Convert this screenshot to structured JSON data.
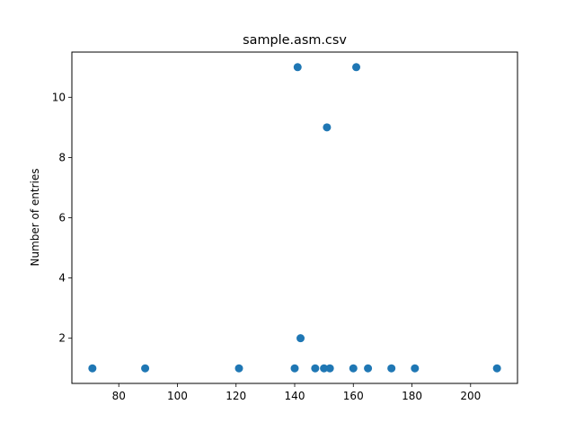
{
  "chart_data": {
    "type": "scatter",
    "title": "sample.asm.csv",
    "xlabel": "",
    "ylabel": "Number of entries",
    "xlim": [
      64,
      216
    ],
    "ylim": [
      0.5,
      11.5
    ],
    "x_ticks": [
      80,
      100,
      120,
      140,
      160,
      180,
      200
    ],
    "y_ticks": [
      2,
      4,
      6,
      8,
      10
    ],
    "grid": false,
    "legend": "none",
    "marker_color": "#1f77b4",
    "points": [
      {
        "x": 71,
        "y": 1
      },
      {
        "x": 89,
        "y": 1
      },
      {
        "x": 121,
        "y": 1
      },
      {
        "x": 140,
        "y": 1
      },
      {
        "x": 141,
        "y": 11
      },
      {
        "x": 142,
        "y": 2
      },
      {
        "x": 147,
        "y": 1
      },
      {
        "x": 150,
        "y": 1
      },
      {
        "x": 151,
        "y": 9
      },
      {
        "x": 152,
        "y": 1
      },
      {
        "x": 160,
        "y": 1
      },
      {
        "x": 161,
        "y": 11
      },
      {
        "x": 165,
        "y": 1
      },
      {
        "x": 173,
        "y": 1
      },
      {
        "x": 181,
        "y": 1
      },
      {
        "x": 209,
        "y": 1
      }
    ]
  }
}
